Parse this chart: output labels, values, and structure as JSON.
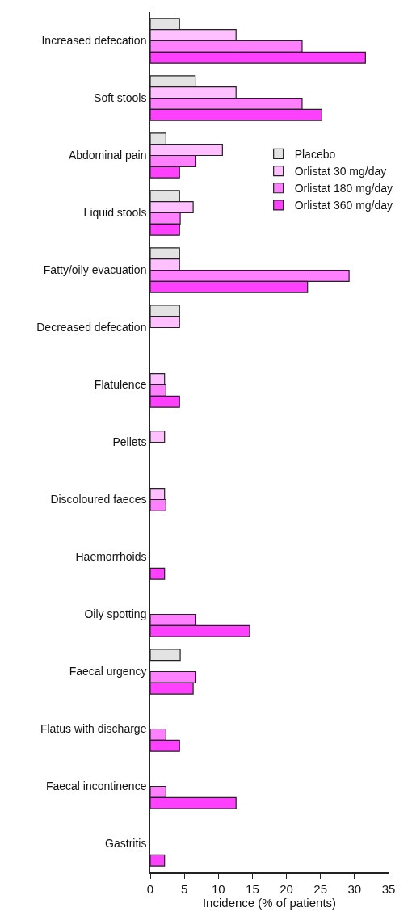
{
  "chart_data": {
    "type": "bar",
    "orientation": "horizontal",
    "xlabel": "Incidence (% of patients)",
    "categories": [
      "Increased defecation",
      "Soft stools",
      "Abdominal pain",
      "Liquid stools",
      "Fatty/oily evacuation",
      "Decreased defecation",
      "Flatulence",
      "Pellets",
      "Discoloured faeces",
      "Haemorrhoids",
      "Oily spotting",
      "Faecal urgency",
      "Flatus with discharge",
      "Faecal incontinence",
      "Gastritis"
    ],
    "series": [
      {
        "name": "Placebo",
        "color": "#e3e3e3",
        "values": [
          4.3,
          6.6,
          2.3,
          4.3,
          4.3,
          4.3,
          null,
          null,
          null,
          null,
          null,
          4.4,
          null,
          null,
          null
        ]
      },
      {
        "name": "Orlistat 30 mg/day",
        "color": "#ffc0ff",
        "values": [
          12.6,
          12.6,
          10.6,
          6.3,
          4.3,
          4.3,
          2.1,
          2.1,
          2.1,
          null,
          null,
          null,
          null,
          null,
          null
        ]
      },
      {
        "name": "Orlistat 180 mg/day",
        "color": "#ff80ff",
        "values": [
          22.3,
          22.3,
          6.7,
          4.4,
          29.2,
          null,
          2.3,
          null,
          2.3,
          null,
          6.7,
          6.7,
          2.3,
          2.3,
          null
        ]
      },
      {
        "name": "Orlistat 360 mg/day",
        "color": "#ff40ff",
        "values": [
          31.6,
          25.2,
          4.3,
          4.3,
          23.1,
          null,
          4.3,
          null,
          null,
          2.1,
          14.6,
          6.3,
          4.3,
          12.6,
          2.1
        ]
      }
    ],
    "xlim": [
      0,
      35
    ],
    "xticks": [
      0,
      5,
      10,
      15,
      20,
      25,
      30,
      35
    ],
    "legend": "right"
  }
}
